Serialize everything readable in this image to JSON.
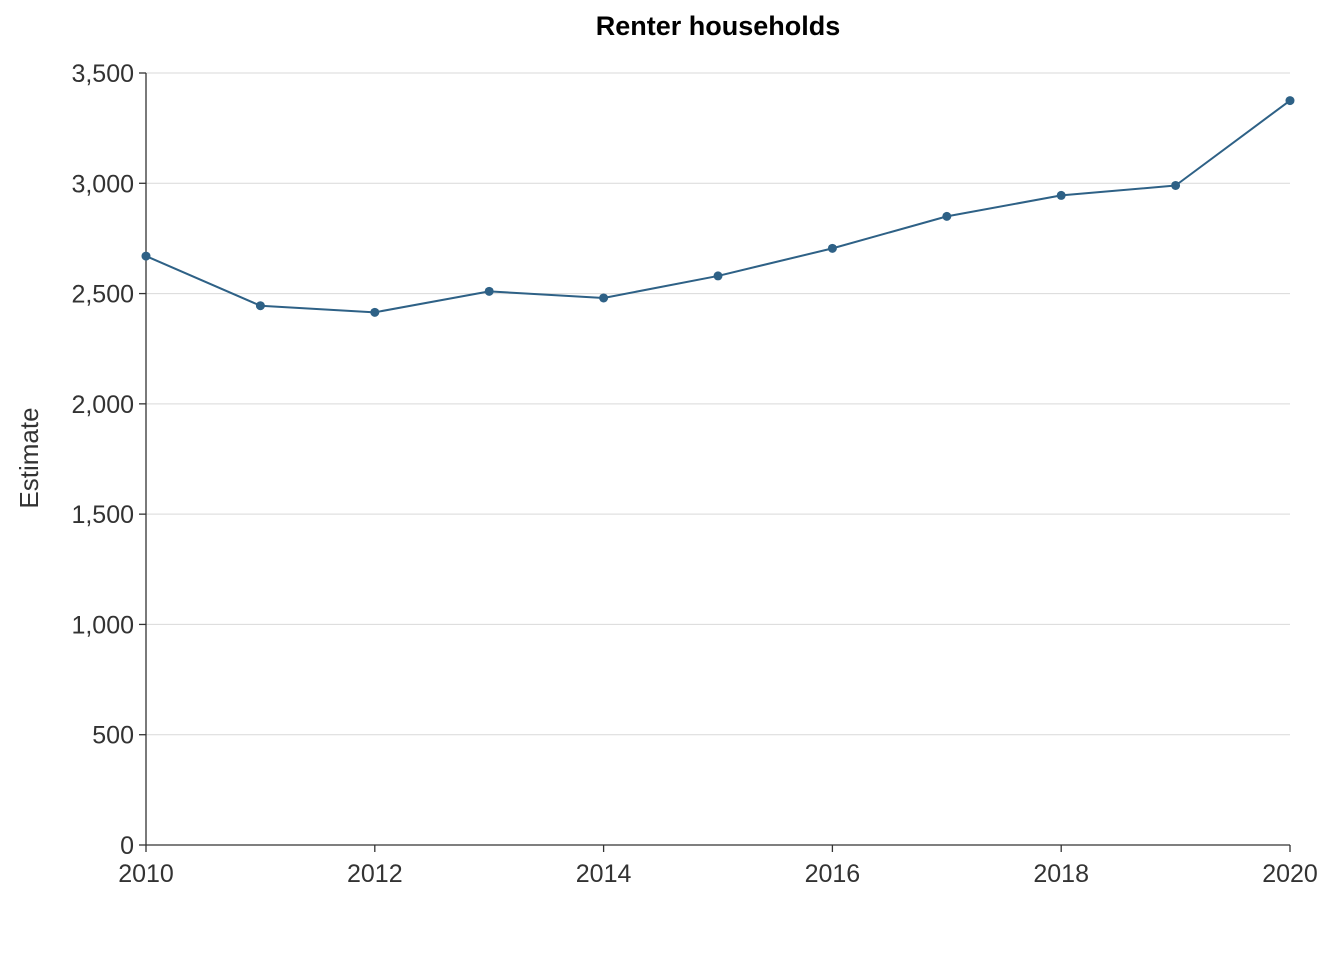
{
  "chart_data": {
    "type": "line",
    "title": "Renter households",
    "xlabel": "",
    "ylabel": "Estimate",
    "x": [
      2010,
      2011,
      2012,
      2013,
      2014,
      2015,
      2016,
      2017,
      2018,
      2019,
      2020
    ],
    "series": [
      {
        "values": [
          2670,
          2445,
          2415,
          2510,
          2480,
          2580,
          2705,
          2850,
          2945,
          2990,
          3375
        ]
      }
    ],
    "xlim": [
      2010,
      2020
    ],
    "ylim": [
      0,
      3500
    ],
    "x_ticks": [
      2010,
      2012,
      2014,
      2016,
      2018,
      2020
    ],
    "x_tick_labels": [
      "2010",
      "2012",
      "2014",
      "2016",
      "2018",
      "2020"
    ],
    "y_ticks": [
      0,
      500,
      1000,
      1500,
      2000,
      2500,
      3000,
      3500
    ],
    "y_tick_labels": [
      "0",
      "500",
      "1,000",
      "1,500",
      "2,000",
      "2,500",
      "3,000",
      "3,500"
    ],
    "grid": "horizontal",
    "legend": "none",
    "colors": {
      "series": "#2e6186",
      "grid": "#d9d9d9",
      "axis": "#333333"
    }
  }
}
